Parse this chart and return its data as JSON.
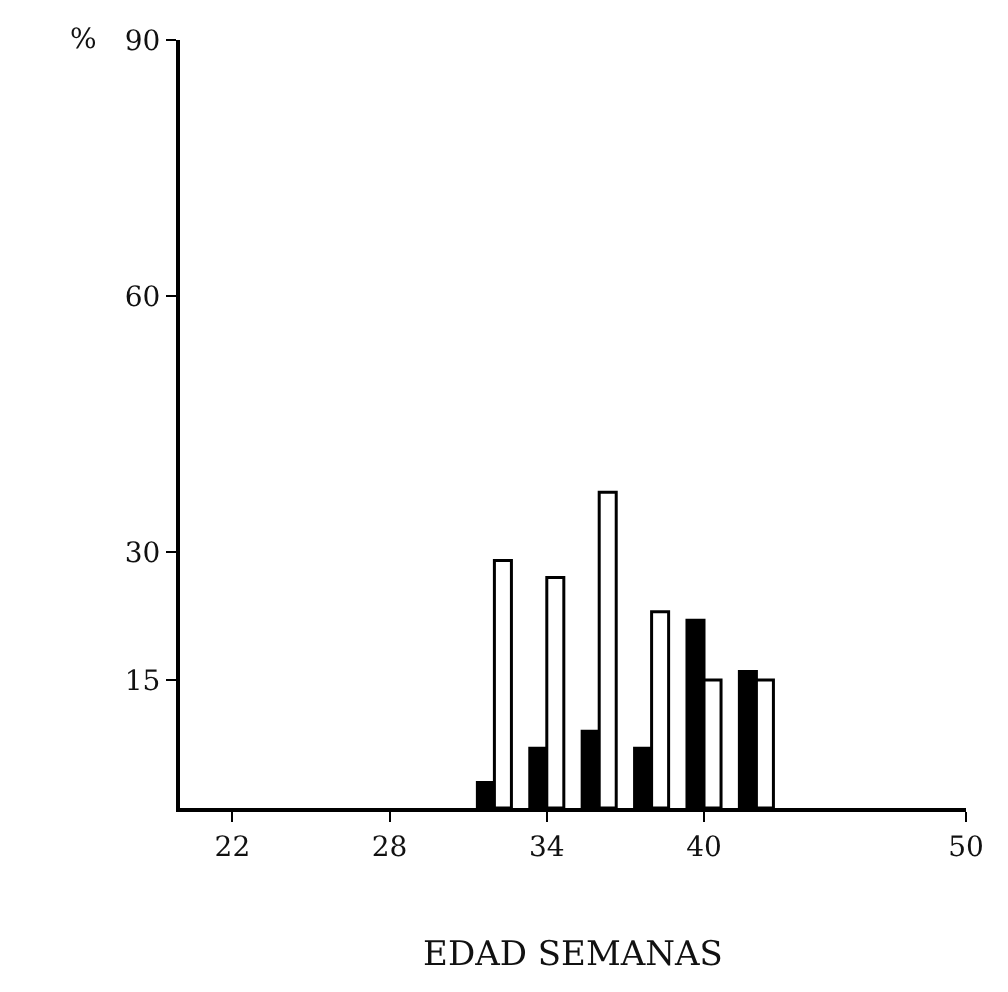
{
  "chart_data": {
    "type": "bar",
    "xlabel": "EDAD SEMANAS",
    "ylabel": "%",
    "x": [
      32,
      34,
      36,
      38,
      40,
      42
    ],
    "series": [
      {
        "color": "#000000",
        "values": [
          3,
          7,
          9,
          7,
          22,
          16
        ]
      },
      {
        "color": "#ffffff",
        "values": [
          29,
          27,
          37,
          23,
          15,
          15
        ]
      }
    ],
    "xlim": [
      20,
      50
    ],
    "xticks": [
      22,
      28,
      34,
      40,
      50
    ],
    "ylim": [
      0,
      90
    ],
    "yticks": [
      15,
      30,
      60,
      90
    ]
  }
}
